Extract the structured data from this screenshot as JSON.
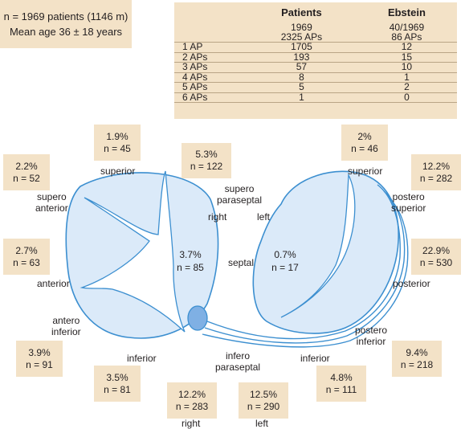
{
  "summary": {
    "line1": "n = 1969 patients (1146 m)",
    "line2": "Mean age 36 ± 18 years"
  },
  "table": {
    "headers": [
      "",
      "Patients",
      "Ebstein"
    ],
    "totals": [
      [
        "",
        "1969",
        "40/1969"
      ],
      [
        "",
        "2325 APs",
        "86 APs"
      ]
    ],
    "rows": [
      [
        "1 AP",
        "1705",
        "12"
      ],
      [
        "2 APs",
        "193",
        "15"
      ],
      [
        "3 APs",
        "57",
        "10"
      ],
      [
        "4 APs",
        "8",
        "1"
      ],
      [
        "5 APs",
        "5",
        "2"
      ],
      [
        "6 APs",
        "1",
        "0"
      ]
    ]
  },
  "boxes": {
    "superior_right": {
      "pct": "1.9%",
      "n": "n = 45"
    },
    "supero_paraseptal": {
      "pct": "5.3%",
      "n": "n = 122"
    },
    "supero_anterior": {
      "pct": "2.2%",
      "n": "n = 52"
    },
    "anterior": {
      "pct": "2.7%",
      "n": "n = 63"
    },
    "antero_inferior": {
      "pct": "3.9%",
      "n": "n = 91"
    },
    "inferior_right": {
      "pct": "3.5%",
      "n": "n = 81"
    },
    "infero_paraseptal_right": {
      "pct": "12.2%",
      "n": "n = 283"
    },
    "infero_paraseptal_left": {
      "pct": "12.5%",
      "n": "n = 290"
    },
    "inferior_left": {
      "pct": "4.8%",
      "n": "n = 111"
    },
    "postero_inferior": {
      "pct": "9.4%",
      "n": "n = 218"
    },
    "posterior": {
      "pct": "22.9%",
      "n": "n = 530"
    },
    "postero_superior": {
      "pct": "12.2%",
      "n": "n = 282"
    },
    "superior_left": {
      "pct": "2%",
      "n": "n = 46"
    },
    "septal": {
      "pct": "3.7%",
      "n": "n = 85"
    },
    "left_septal": {
      "pct": "0.7%",
      "n": "n = 17"
    }
  },
  "labels": {
    "superior_right": "superior",
    "supero_anterior_1": "supero",
    "supero_anterior_2": "anterior",
    "supero_paraseptal_1": "supero",
    "supero_paraseptal_2": "paraseptal",
    "right_top": "right",
    "left_top": "left",
    "anterior": "anterior",
    "septal": "septal",
    "antero_inferior_1": "antero",
    "antero_inferior_2": "inferior",
    "inferior_right": "inferior",
    "infero_paraseptal_1": "infero",
    "infero_paraseptal_2": "paraseptal",
    "inferior_left": "inferior",
    "postero_inferior_1": "postero",
    "postero_inferior_2": "inferior",
    "posterior": "posterior",
    "postero_superior_1": "postero",
    "postero_superior_2": "superior",
    "superior_left": "superior",
    "right_bottom": "right",
    "left_bottom": "left"
  },
  "colors": {
    "box_fill": "#f3e2c7",
    "valve_fill": "#dbeaf9",
    "valve_stroke": "#3c8fd0",
    "node_fill": "#7fb0e4"
  }
}
